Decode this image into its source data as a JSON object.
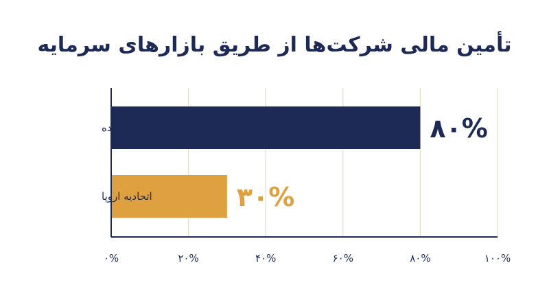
{
  "chart_data": {
    "type": "bar",
    "orientation": "horizontal",
    "title": "تأمین مالی شرکت‌ها از طریق بازارهای سرمایه",
    "categories": [
      "ایالات متحده",
      "اتحادیه اروپا"
    ],
    "values": [
      80,
      30
    ],
    "data_labels": [
      "۸۰%",
      "۳۰%"
    ],
    "xlim": [
      0,
      100
    ],
    "x_ticks": [
      0,
      20,
      40,
      60,
      80,
      100
    ],
    "x_tick_labels": [
      "۰%",
      "۲۰%",
      "۴۰%",
      "۶۰%",
      "۸۰%",
      "۱۰۰%"
    ],
    "bar_colors": [
      "#1c2a55",
      "#dfa040"
    ],
    "label_colors": [
      "#1c2a55",
      "#dfa040"
    ],
    "grid": true,
    "grid_color": "#eadcc5",
    "axis_color": "#1c2a55"
  }
}
